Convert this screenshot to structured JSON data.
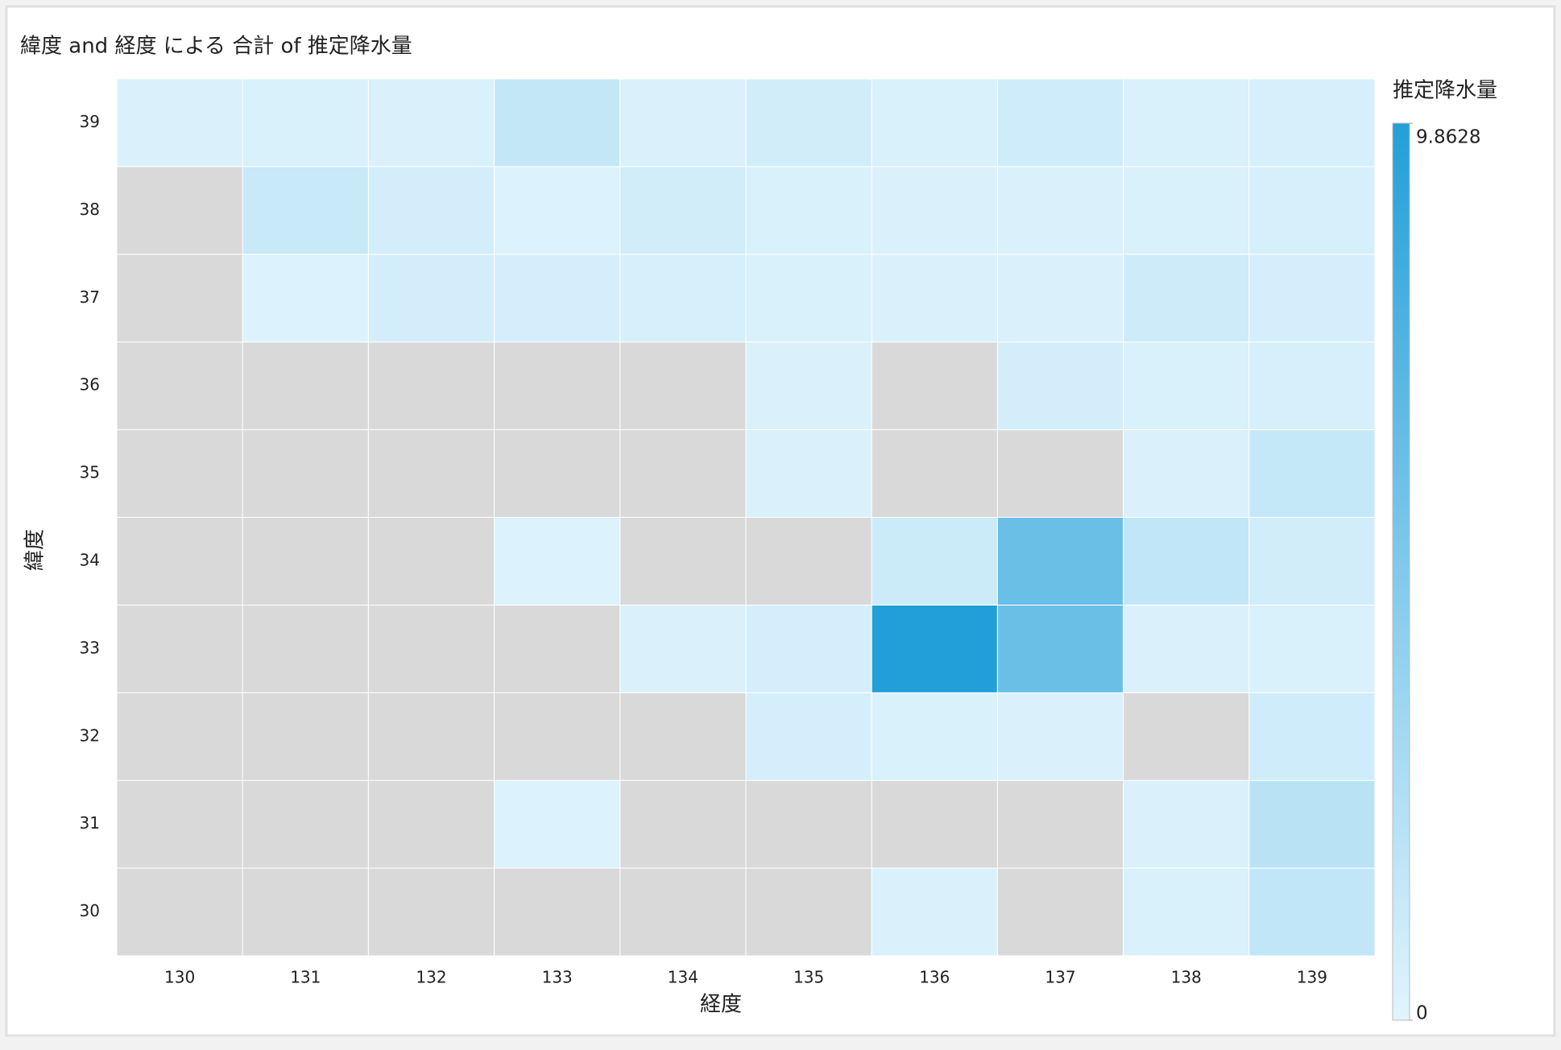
{
  "chart_data": {
    "type": "heatmap",
    "title": "緯度 and 経度 による 合計 of 推定降水量",
    "x_label": "経度",
    "y_label": "緯度",
    "x": [
      "130",
      "131",
      "132",
      "133",
      "134",
      "135",
      "136",
      "137",
      "138",
      "139"
    ],
    "y": [
      "30",
      "31",
      "32",
      "33",
      "34",
      "35",
      "36",
      "37",
      "38",
      "39"
    ],
    "values": [
      [
        null,
        null,
        null,
        null,
        null,
        null,
        0.3,
        null,
        0.4,
        1.6
      ],
      [
        null,
        null,
        null,
        0.2,
        null,
        null,
        null,
        null,
        0.3,
        2.0
      ],
      [
        null,
        null,
        null,
        null,
        null,
        0.6,
        0.4,
        0.3,
        null,
        0.9
      ],
      [
        null,
        null,
        null,
        null,
        0.3,
        0.6,
        9.8628,
        6.2,
        0.3,
        0.4
      ],
      [
        null,
        null,
        null,
        0.2,
        null,
        null,
        1.1,
        6.2,
        1.6,
        0.8
      ],
      [
        null,
        null,
        null,
        null,
        null,
        0.3,
        null,
        null,
        0.3,
        1.4
      ],
      [
        null,
        null,
        null,
        null,
        null,
        0.3,
        null,
        0.7,
        0.4,
        0.5
      ],
      [
        null,
        0.2,
        0.7,
        0.6,
        0.5,
        0.4,
        0.3,
        0.3,
        1.0,
        0.6
      ],
      [
        null,
        1.3,
        0.7,
        0.2,
        0.8,
        0.4,
        0.3,
        0.3,
        0.4,
        0.5
      ],
      [
        0.3,
        0.4,
        0.3,
        1.5,
        0.3,
        0.8,
        0.4,
        0.9,
        0.4,
        0.5
      ]
    ],
    "missing_color": "#d9d9d9",
    "colorbar_title": "推定降水量",
    "clim": [
      0,
      9.8628
    ],
    "cticks": [
      0,
      9.8628
    ],
    "colors": [
      "#e0f4fd",
      "#229fd8"
    ]
  }
}
